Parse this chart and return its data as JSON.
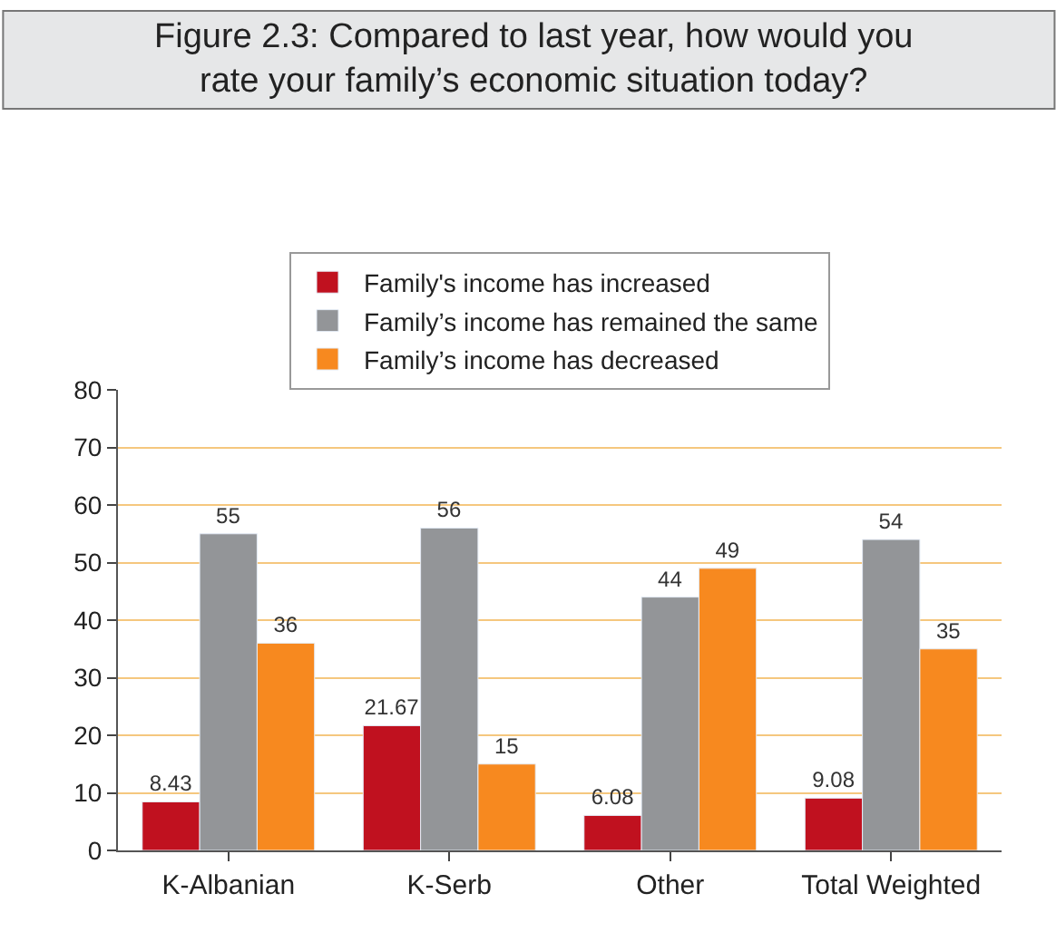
{
  "chart_data": {
    "type": "bar",
    "title": "Figure 2.3: Compared to last year, how would you rate your family’s economic situation today?",
    "categories": [
      "K-Albanian",
      "K-Serb",
      "Other",
      "Total Weighted"
    ],
    "series": [
      {
        "name": "Family's income has increased",
        "color": "#c0111f",
        "values": [
          8.43,
          21.67,
          6.08,
          9.08
        ]
      },
      {
        "name": "Family’s income has remained the same",
        "color": "#939598",
        "values": [
          55,
          56,
          44,
          54
        ]
      },
      {
        "name": "Family’s income has decreased",
        "color": "#f7891f",
        "values": [
          36,
          15,
          49,
          35
        ]
      }
    ],
    "ylim": [
      0,
      80
    ],
    "yticks": [
      0,
      10,
      20,
      30,
      40,
      50,
      60,
      70,
      80
    ],
    "grid": "y",
    "legend": "top",
    "data_labels": true
  }
}
